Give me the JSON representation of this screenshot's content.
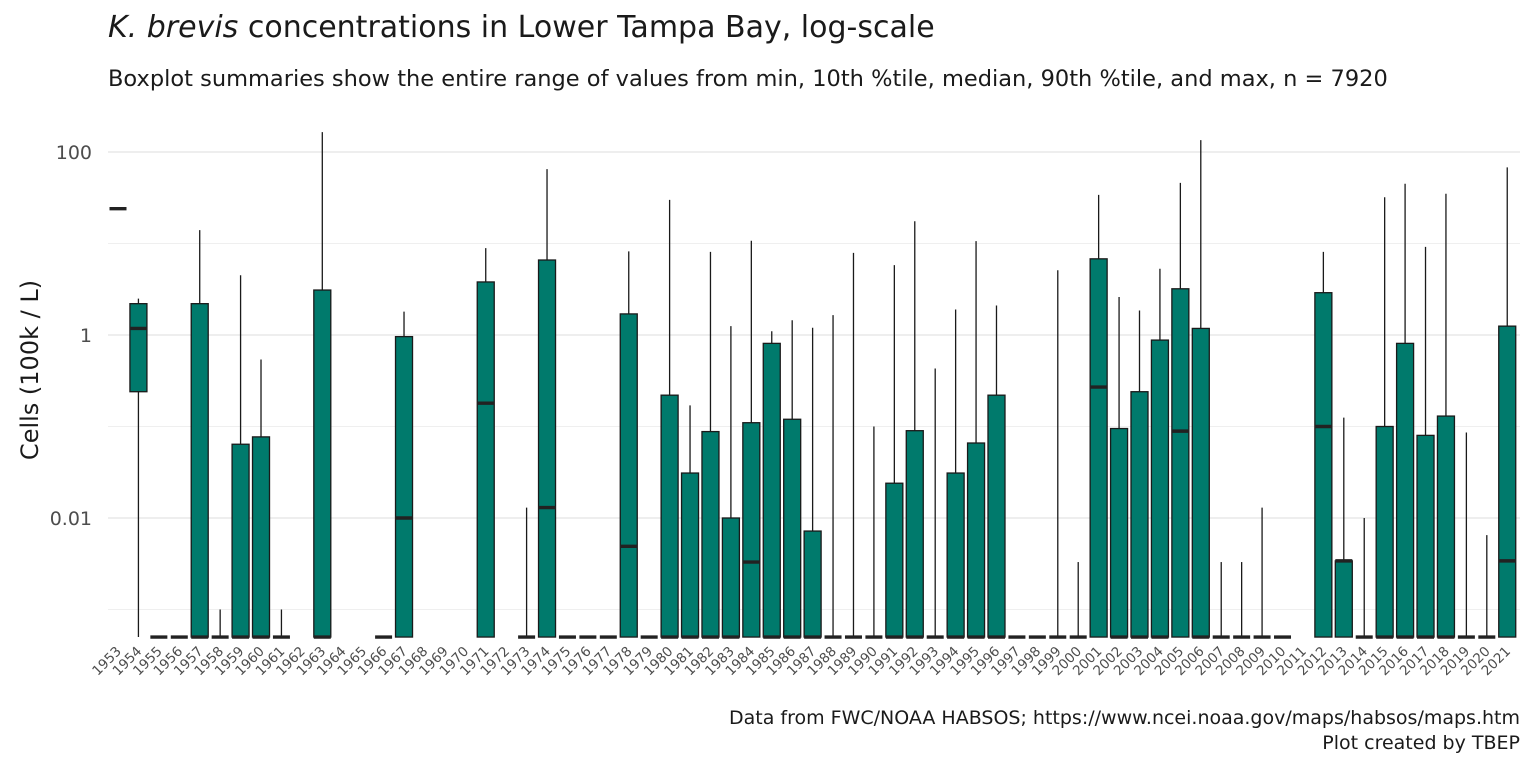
{
  "header": {
    "title_italic": "K. brevis",
    "title_rest": " concentrations in Lower Tampa Bay, log-scale",
    "subtitle": "Boxplot summaries show the entire range of values from min, 10th %tile, median, 90th %tile, and max, n = 7920"
  },
  "caption": {
    "line1": "Data from FWC/NOAA HABSOS; https://www.ncei.noaa.gov/maps/habsos/maps.htm",
    "line2": "Plot created by TBEP"
  },
  "colors": {
    "box_fill": "#007A6C",
    "box_stroke": "#1a1a1a",
    "grid": "#e6e6e6"
  },
  "chart_data": {
    "type": "boxplot",
    "ylabel": "Cells (100k / L)",
    "yscale": "log10",
    "ylim": [
      0.00035,
      180
    ],
    "yticks": [
      0.01,
      1,
      100
    ],
    "ytick_labels": [
      "0.01",
      "1",
      "100"
    ],
    "grid": true,
    "categories": [
      "1953",
      "1954",
      "1955",
      "1956",
      "1957",
      "1958",
      "1959",
      "1960",
      "1961",
      "1962",
      "1963",
      "1964",
      "1965",
      "1966",
      "1967",
      "1968",
      "1969",
      "1970",
      "1971",
      "1972",
      "1973",
      "1974",
      "1975",
      "1976",
      "1977",
      "1978",
      "1979",
      "1980",
      "1981",
      "1982",
      "1983",
      "1984",
      "1985",
      "1986",
      "1987",
      "1988",
      "1989",
      "1990",
      "1991",
      "1992",
      "1993",
      "1994",
      "1995",
      "1996",
      "1997",
      "1998",
      "1999",
      "2000",
      "2001",
      "2002",
      "2003",
      "2004",
      "2005",
      "2006",
      "2007",
      "2008",
      "2009",
      "2010",
      "2011",
      "2012",
      "2013",
      "2014",
      "2015",
      "2016",
      "2017",
      "2018",
      "2019",
      "2020",
      "2021"
    ],
    "boxes": [
      {
        "year": "1953",
        "min": 24,
        "p10": 24,
        "median": 24,
        "p90": 24,
        "max": 24
      },
      {
        "year": "1954",
        "min": 0.0005,
        "p10": 0.24,
        "median": 1.18,
        "p90": 2.2,
        "max": 2.5
      },
      {
        "year": "1955",
        "min": 0.0005,
        "p10": 0.0005,
        "median": 0.0005,
        "p90": 0.0005,
        "max": 0.0005
      },
      {
        "year": "1956",
        "min": 0.0005,
        "p10": 0.0005,
        "median": 0.0005,
        "p90": 0.0005,
        "max": 0.0005
      },
      {
        "year": "1957",
        "min": 0.0005,
        "p10": 0.0005,
        "median": 0.0005,
        "p90": 2.2,
        "max": 14
      },
      {
        "year": "1958",
        "min": 0.0005,
        "p10": 0.0005,
        "median": 0.0005,
        "p90": 0.0005,
        "max": 0.001
      },
      {
        "year": "1959",
        "min": 0.0005,
        "p10": 0.0005,
        "median": 0.0005,
        "p90": 0.064,
        "max": 4.5
      },
      {
        "year": "1960",
        "min": 0.0005,
        "p10": 0.0005,
        "median": 0.0005,
        "p90": 0.077,
        "max": 0.54
      },
      {
        "year": "1961",
        "min": 0.0005,
        "p10": 0.0005,
        "median": 0.0005,
        "p90": 0.0005,
        "max": 0.001
      },
      {
        "year": "1963",
        "min": 0.0005,
        "p10": 0.0005,
        "median": 0.0005,
        "p90": 3.1,
        "max": 165
      },
      {
        "year": "1966",
        "min": 0.0005,
        "p10": 0.0005,
        "median": 0.0005,
        "p90": 0.0005,
        "max": 0.0005
      },
      {
        "year": "1967",
        "min": 0.0005,
        "p10": 0.0005,
        "median": 0.01,
        "p90": 0.96,
        "max": 1.8
      },
      {
        "year": "1971",
        "min": 0.0005,
        "p10": 0.0005,
        "median": 0.18,
        "p90": 3.8,
        "max": 8.9
      },
      {
        "year": "1973",
        "min": 0.0005,
        "p10": 0.0005,
        "median": 0.0005,
        "p90": 0.0005,
        "max": 0.013
      },
      {
        "year": "1974",
        "min": 0.0005,
        "p10": 0.0005,
        "median": 0.013,
        "p90": 6.6,
        "max": 65
      },
      {
        "year": "1975",
        "min": 0.0005,
        "p10": 0.0005,
        "median": 0.0005,
        "p90": 0.0005,
        "max": 0.0005
      },
      {
        "year": "1976",
        "min": 0.0005,
        "p10": 0.0005,
        "median": 0.0005,
        "p90": 0.0005,
        "max": 0.0005
      },
      {
        "year": "1977",
        "min": 0.0005,
        "p10": 0.0005,
        "median": 0.0005,
        "p90": 0.0005,
        "max": 0.0005
      },
      {
        "year": "1978",
        "min": 0.0005,
        "p10": 0.0005,
        "median": 0.0049,
        "p90": 1.7,
        "max": 8.2
      },
      {
        "year": "1979",
        "min": 0.0005,
        "p10": 0.0005,
        "median": 0.0005,
        "p90": 0.0005,
        "max": 0.0005
      },
      {
        "year": "1980",
        "min": 0.0005,
        "p10": 0.0005,
        "median": 0.0005,
        "p90": 0.22,
        "max": 30
      },
      {
        "year": "1981",
        "min": 0.0005,
        "p10": 0.0005,
        "median": 0.0005,
        "p90": 0.031,
        "max": 0.17
      },
      {
        "year": "1982",
        "min": 0.0005,
        "p10": 0.0005,
        "median": 0.0005,
        "p90": 0.088,
        "max": 8.1
      },
      {
        "year": "1983",
        "min": 0.0005,
        "p10": 0.0005,
        "median": 0.0005,
        "p90": 0.01,
        "max": 1.25
      },
      {
        "year": "1984",
        "min": 0.0005,
        "p10": 0.0005,
        "median": 0.0033,
        "p90": 0.11,
        "max": 10.7
      },
      {
        "year": "1985",
        "min": 0.0005,
        "p10": 0.0005,
        "median": 0.0005,
        "p90": 0.81,
        "max": 1.1
      },
      {
        "year": "1986",
        "min": 0.0005,
        "p10": 0.0005,
        "median": 0.0005,
        "p90": 0.12,
        "max": 1.45
      },
      {
        "year": "1987",
        "min": 0.0005,
        "p10": 0.0005,
        "median": 0.0005,
        "p90": 0.0072,
        "max": 1.2
      },
      {
        "year": "1988",
        "min": 0.0005,
        "p10": 0.0005,
        "median": 0.0005,
        "p90": 0.0005,
        "max": 1.65
      },
      {
        "year": "1989",
        "min": 0.0005,
        "p10": 0.0005,
        "median": 0.0005,
        "p90": 0.0005,
        "max": 7.9
      },
      {
        "year": "1990",
        "min": 0.0005,
        "p10": 0.0005,
        "median": 0.0005,
        "p90": 0.0005,
        "max": 0.1
      },
      {
        "year": "1991",
        "min": 0.0005,
        "p10": 0.0005,
        "median": 0.0005,
        "p90": 0.024,
        "max": 5.8
      },
      {
        "year": "1992",
        "min": 0.0005,
        "p10": 0.0005,
        "median": 0.0005,
        "p90": 0.09,
        "max": 17.5
      },
      {
        "year": "1993",
        "min": 0.0005,
        "p10": 0.0005,
        "median": 0.0005,
        "p90": 0.0005,
        "max": 0.43
      },
      {
        "year": "1994",
        "min": 0.0005,
        "p10": 0.0005,
        "median": 0.0005,
        "p90": 0.031,
        "max": 1.9
      },
      {
        "year": "1995",
        "min": 0.0005,
        "p10": 0.0005,
        "median": 0.0005,
        "p90": 0.066,
        "max": 10.6
      },
      {
        "year": "1996",
        "min": 0.0005,
        "p10": 0.0005,
        "median": 0.0005,
        "p90": 0.22,
        "max": 2.1
      },
      {
        "year": "1997",
        "min": 0.0005,
        "p10": 0.0005,
        "median": 0.0005,
        "p90": 0.0005,
        "max": 0.0005
      },
      {
        "year": "1998",
        "min": 0.0005,
        "p10": 0.0005,
        "median": 0.0005,
        "p90": 0.0005,
        "max": 0.0005
      },
      {
        "year": "1999",
        "min": 0.0005,
        "p10": 0.0005,
        "median": 0.0005,
        "p90": 0.0005,
        "max": 5.1
      },
      {
        "year": "2000",
        "min": 0.0005,
        "p10": 0.0005,
        "median": 0.0005,
        "p90": 0.0005,
        "max": 0.0033
      },
      {
        "year": "2001",
        "min": 0.0005,
        "p10": 0.0005,
        "median": 0.27,
        "p90": 6.8,
        "max": 34
      },
      {
        "year": "2002",
        "min": 0.0005,
        "p10": 0.0005,
        "median": 0.0005,
        "p90": 0.095,
        "max": 2.6
      },
      {
        "year": "2003",
        "min": 0.0005,
        "p10": 0.0005,
        "median": 0.0005,
        "p90": 0.24,
        "max": 1.85
      },
      {
        "year": "2004",
        "min": 0.0005,
        "p10": 0.0005,
        "median": 0.0005,
        "p90": 0.88,
        "max": 5.3
      },
      {
        "year": "2005",
        "min": 0.0005,
        "p10": 0.0005,
        "median": 0.089,
        "p90": 3.2,
        "max": 46
      },
      {
        "year": "2006",
        "min": 0.0005,
        "p10": 0.0005,
        "median": 0.0005,
        "p90": 1.18,
        "max": 135
      },
      {
        "year": "2007",
        "min": 0.0005,
        "p10": 0.0005,
        "median": 0.0005,
        "p90": 0.0005,
        "max": 0.0033
      },
      {
        "year": "2008",
        "min": 0.0005,
        "p10": 0.0005,
        "median": 0.0005,
        "p90": 0.0005,
        "max": 0.0033
      },
      {
        "year": "2009",
        "min": 0.0005,
        "p10": 0.0005,
        "median": 0.0005,
        "p90": 0.0005,
        "max": 0.013
      },
      {
        "year": "2010",
        "min": 0.0005,
        "p10": 0.0005,
        "median": 0.0005,
        "p90": 0.0005,
        "max": 0.0005
      },
      {
        "year": "2012",
        "min": 0.0005,
        "p10": 0.0005,
        "median": 0.1,
        "p90": 2.9,
        "max": 8.1
      },
      {
        "year": "2013",
        "min": 0.0005,
        "p10": 0.0005,
        "median": 0.0034,
        "p90": 0.0034,
        "max": 0.125
      },
      {
        "year": "2014",
        "min": 0.0005,
        "p10": 0.0005,
        "median": 0.0005,
        "p90": 0.0005,
        "max": 0.01
      },
      {
        "year": "2015",
        "min": 0.0005,
        "p10": 0.0005,
        "median": 0.0005,
        "p90": 0.1,
        "max": 32
      },
      {
        "year": "2016",
        "min": 0.0005,
        "p10": 0.0005,
        "median": 0.0005,
        "p90": 0.81,
        "max": 45
      },
      {
        "year": "2017",
        "min": 0.0005,
        "p10": 0.0005,
        "median": 0.0005,
        "p90": 0.08,
        "max": 9.2
      },
      {
        "year": "2018",
        "min": 0.0005,
        "p10": 0.0005,
        "median": 0.0005,
        "p90": 0.13,
        "max": 35
      },
      {
        "year": "2019",
        "min": 0.0005,
        "p10": 0.0005,
        "median": 0.0005,
        "p90": 0.0005,
        "max": 0.086
      },
      {
        "year": "2020",
        "min": 0.0005,
        "p10": 0.0005,
        "median": 0.0005,
        "p90": 0.0005,
        "max": 0.0065
      },
      {
        "year": "2021",
        "min": 0.0005,
        "p10": 0.0005,
        "median": 0.0034,
        "p90": 1.25,
        "max": 68
      }
    ]
  }
}
